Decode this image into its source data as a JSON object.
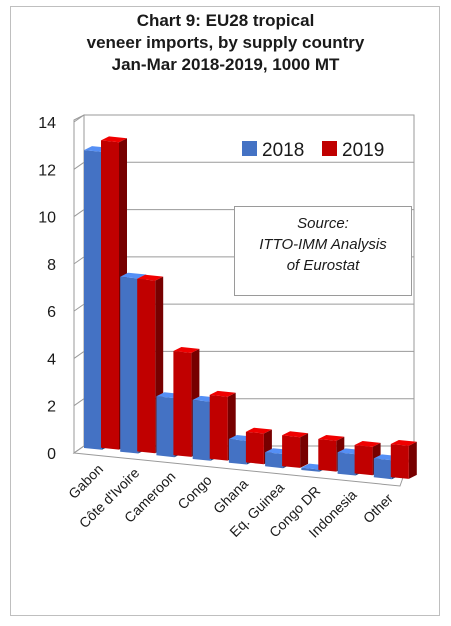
{
  "chart_data": {
    "type": "bar",
    "title_lines": [
      "Chart 9: EU28 tropical",
      "veneer imports, by supply country",
      "Jan-Mar 2018-2019, 1000 MT"
    ],
    "categories": [
      "Gabon",
      "Côte d'Ivoire",
      "Cameroon",
      "Congo",
      "Ghana",
      "Eq. Guinea",
      "Congo DR",
      "Indonesia",
      "Other"
    ],
    "series": [
      {
        "name": "2018",
        "values": [
          12.6,
          7.4,
          2.5,
          2.5,
          1.0,
          0.6,
          0.1,
          0.9,
          0.8
        ],
        "color": "#4472C4"
      },
      {
        "name": "2019",
        "values": [
          13.0,
          7.3,
          4.4,
          2.7,
          1.3,
          1.3,
          1.3,
          1.2,
          1.4
        ],
        "color": "#C00000"
      }
    ],
    "yticks": [
      "0",
      "2",
      "4",
      "6",
      "8",
      "10",
      "12",
      "14"
    ],
    "ylim": [
      0,
      14
    ],
    "grid": true,
    "legend_position": "top-right",
    "annotation": [
      "Source:",
      "ITTO-IMM Analysis",
      "of Eurostat"
    ]
  }
}
